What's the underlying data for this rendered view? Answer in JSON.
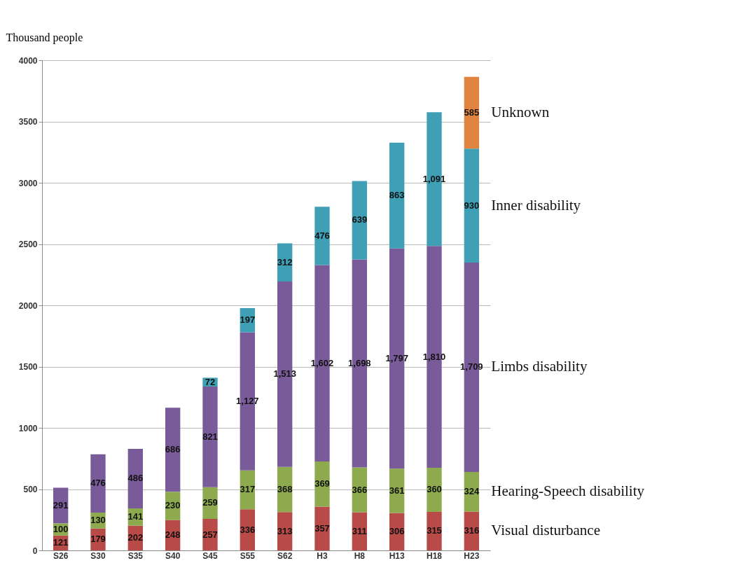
{
  "chart_data": {
    "type": "bar",
    "stacked": true,
    "ylabel": "Thousand people",
    "categories": [
      "S26",
      "S30",
      "S35",
      "S40",
      "S45",
      "S55",
      "S62",
      "H3",
      "H8",
      "H13",
      "H18",
      "H23"
    ],
    "series": [
      {
        "name": "Visual disturbance",
        "color": "#b84a48",
        "values": [
          121,
          179,
          202,
          248,
          257,
          336,
          313,
          357,
          311,
          306,
          315,
          316
        ]
      },
      {
        "name": "Hearing-Speech disability",
        "color": "#8dab4e",
        "values": [
          100,
          130,
          141,
          230,
          259,
          317,
          368,
          369,
          366,
          361,
          360,
          324
        ]
      },
      {
        "name": "Limbs disability",
        "color": "#7a5b9a",
        "values": [
          291,
          476,
          486,
          686,
          821,
          1127,
          1513,
          1602,
          1698,
          1797,
          1810,
          1709
        ],
        "value_labels": [
          "291",
          "476",
          "486",
          "686",
          "821",
          "1,127",
          "1,513",
          "1,602",
          "1,698",
          "1,797",
          "1,810",
          "1,709"
        ]
      },
      {
        "name": "Inner disability",
        "color": "#3e9fb5",
        "values": [
          null,
          null,
          null,
          null,
          72,
          197,
          312,
          476,
          639,
          863,
          1091,
          930
        ],
        "value_labels": [
          null,
          null,
          null,
          null,
          "72",
          "197",
          "312",
          "476",
          "639",
          "863",
          "1,091",
          "930"
        ]
      },
      {
        "name": "Unknown",
        "color": "#e0853f",
        "values": [
          null,
          null,
          null,
          null,
          null,
          null,
          null,
          null,
          null,
          null,
          null,
          585
        ]
      }
    ],
    "ylim": [
      0,
      4000
    ],
    "yticks": [
      0,
      500,
      1000,
      1500,
      2000,
      2500,
      3000,
      3500,
      4000
    ],
    "grid": "y",
    "data_labels": true
  }
}
